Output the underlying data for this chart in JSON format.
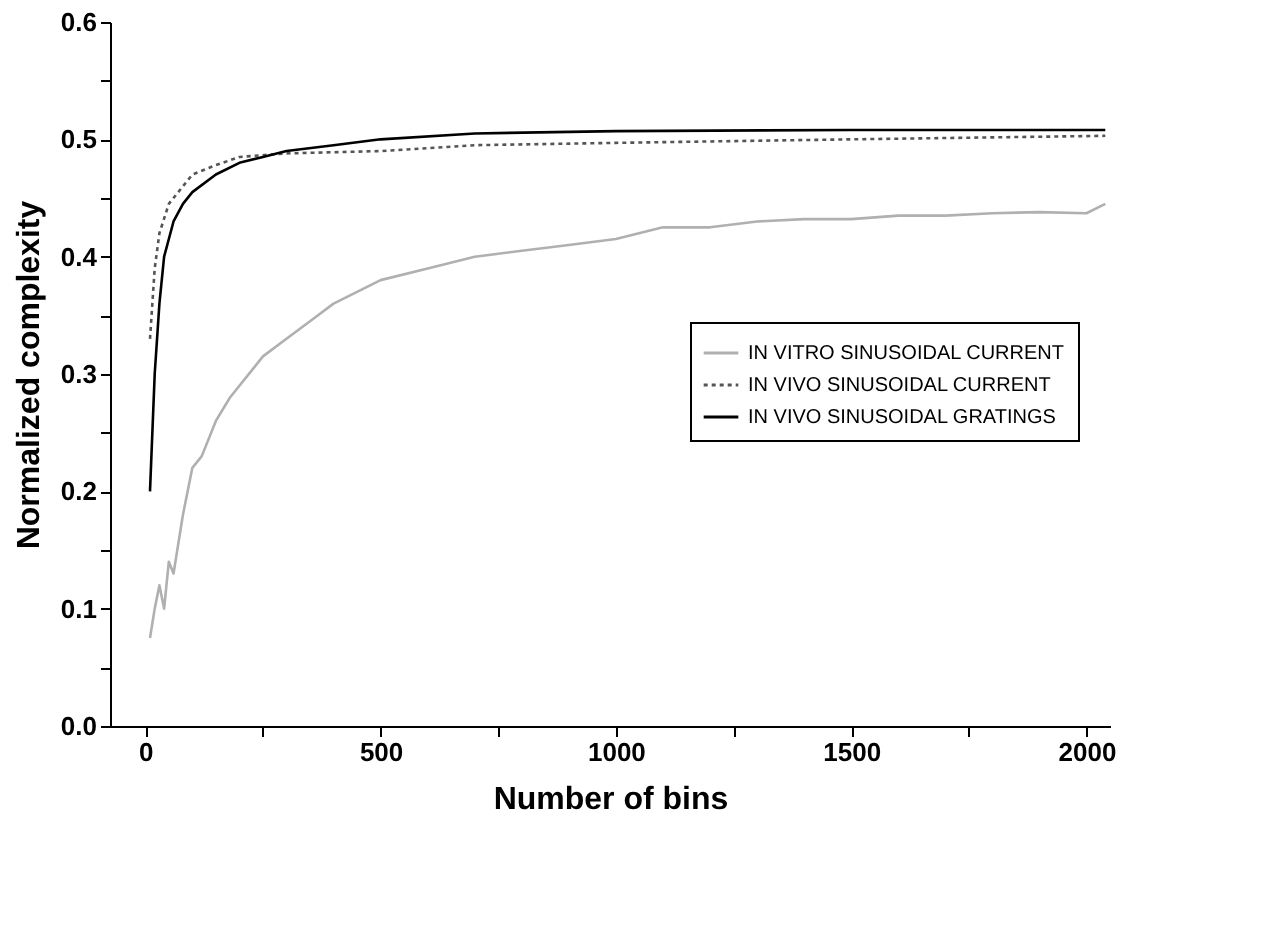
{
  "chart_data": {
    "type": "line",
    "xlabel": "Number of  bins",
    "ylabel": "Normalized complexity",
    "xlim": [
      -75,
      2050
    ],
    "ylim": [
      0,
      0.6
    ],
    "xticks": [
      0,
      {
        "value": 250,
        "label": null
      },
      500,
      {
        "value": 750,
        "label": null
      },
      1000,
      {
        "value": 1250,
        "label": null
      },
      1500,
      {
        "value": 1750,
        "label": null
      },
      2000
    ],
    "yticks": [
      {
        "value": 0,
        "label": "0.0"
      },
      {
        "value": 0.05,
        "label": null
      },
      0.1,
      {
        "value": 0.15,
        "label": null
      },
      0.2,
      {
        "value": 0.25,
        "label": null
      },
      0.3,
      {
        "value": 0.35,
        "label": null
      },
      0.4,
      {
        "value": 0.45,
        "label": null
      },
      0.5,
      {
        "value": 0.55,
        "label": null
      },
      0.6
    ],
    "grid": false,
    "legend": "right",
    "marker": "none",
    "series": [
      {
        "name": "IN VITRO SINUSOIDAL CURRENT",
        "color": "#b0b0b0",
        "line_style": "solid",
        "x": [
          10,
          20,
          30,
          40,
          50,
          60,
          80,
          100,
          120,
          150,
          180,
          200,
          250,
          300,
          350,
          400,
          450,
          500,
          600,
          700,
          800,
          900,
          1000,
          1100,
          1200,
          1300,
          1400,
          1500,
          1600,
          1700,
          1800,
          1900,
          2000,
          2040
        ],
        "values": [
          0.075,
          0.1,
          0.12,
          0.1,
          0.14,
          0.13,
          0.18,
          0.22,
          0.23,
          0.26,
          0.28,
          0.29,
          0.315,
          0.33,
          0.345,
          0.36,
          0.37,
          0.38,
          0.39,
          0.4,
          0.405,
          0.41,
          0.415,
          0.425,
          0.425,
          0.43,
          0.432,
          0.432,
          0.435,
          0.435,
          0.437,
          0.438,
          0.437,
          0.445
        ]
      },
      {
        "name": "IN VIVO SINUSOIDAL CURRENT",
        "color": "#555555",
        "line_style": "dotted",
        "x": [
          10,
          20,
          30,
          50,
          80,
          100,
          150,
          200,
          300,
          500,
          700,
          1000,
          1500,
          2040
        ],
        "values": [
          0.33,
          0.39,
          0.42,
          0.445,
          0.46,
          0.47,
          0.478,
          0.485,
          0.488,
          0.49,
          0.495,
          0.497,
          0.5,
          0.503
        ]
      },
      {
        "name": "IN VIVO SINUSOIDAL GRATINGS",
        "color": "#000000",
        "line_style": "solid",
        "x": [
          10,
          20,
          30,
          40,
          60,
          80,
          100,
          150,
          200,
          250,
          300,
          400,
          500,
          700,
          1000,
          1500,
          2040
        ],
        "values": [
          0.2,
          0.3,
          0.36,
          0.4,
          0.43,
          0.445,
          0.455,
          0.47,
          0.48,
          0.485,
          0.49,
          0.495,
          0.5,
          0.505,
          0.507,
          0.508,
          0.508
        ]
      }
    ]
  }
}
